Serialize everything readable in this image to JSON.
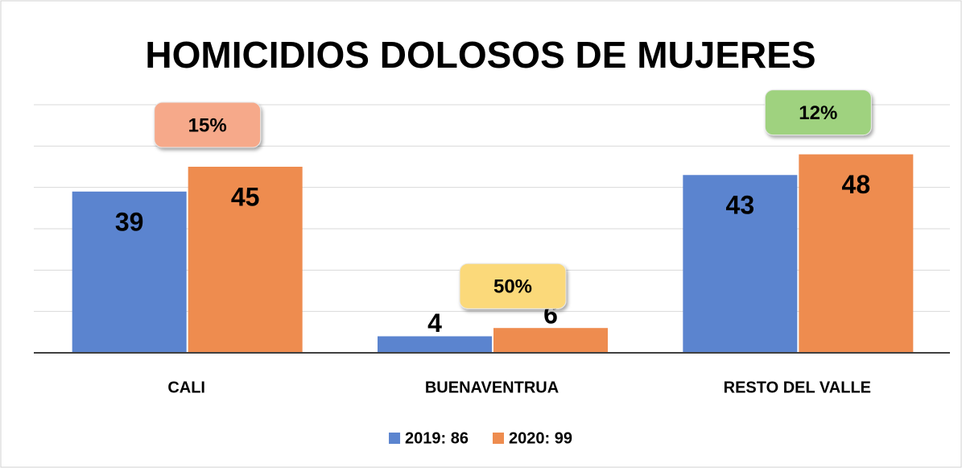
{
  "chart_data": {
    "type": "bar",
    "title": "HOMICIDIOS DOLOSOS DE MUJERES",
    "categories": [
      "CALI",
      "BUENAVENTRUA",
      "RESTO DEL VALLE"
    ],
    "series": [
      {
        "name": "2019: 86",
        "color": "#5b84cf",
        "values": [
          39,
          4,
          43
        ]
      },
      {
        "name": "2020: 99",
        "color": "#ee8c4f",
        "values": [
          45,
          6,
          48
        ]
      }
    ],
    "annotations": [
      {
        "text": "15%",
        "color": "#f6a98a"
      },
      {
        "text": "50%",
        "color": "#fbd97a"
      },
      {
        "text": "12%",
        "color": "#9fd27f"
      }
    ],
    "ylim": [
      0,
      60
    ],
    "yticks": [
      0,
      10,
      20,
      30,
      40,
      50,
      60
    ],
    "grid": true,
    "legend": "bottom"
  }
}
